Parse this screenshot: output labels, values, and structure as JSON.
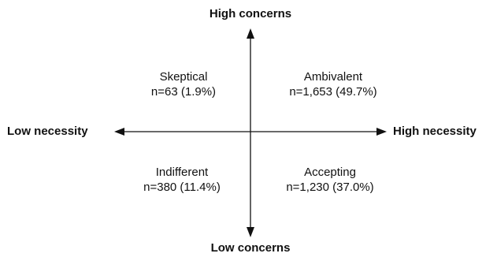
{
  "axes": {
    "top": "High concerns",
    "bottom": "Low concerns",
    "left": "Low necessity",
    "right": "High necessity"
  },
  "quadrants": [
    {
      "position": "top-left",
      "name": "Skeptical",
      "count": "n=63 (1.9%)"
    },
    {
      "position": "top-right",
      "name": "Ambivalent",
      "count": "n=1,653 (49.7%)"
    },
    {
      "position": "bottom-left",
      "name": "Indifferent",
      "count": "n=380 (11.4%)"
    },
    {
      "position": "bottom-right",
      "name": "Accepting",
      "count": "n=1,230 (37.0%)"
    }
  ],
  "colors": {
    "axis": "#111111",
    "text": "#111111"
  }
}
